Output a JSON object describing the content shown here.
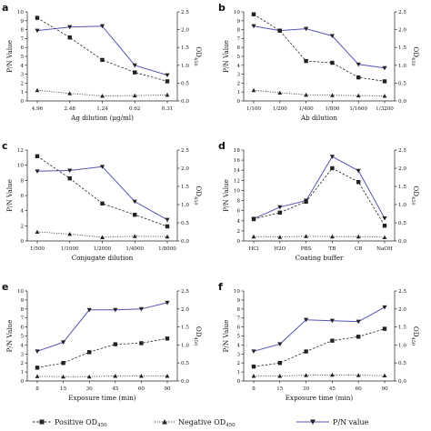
{
  "colors": {
    "positive": "#222222",
    "negative": "#222222",
    "pn": "#5555b5"
  },
  "legend": {
    "positive": "Positive OD",
    "positive_sub": "450",
    "negative": "Negative OD",
    "negative_sub": "450",
    "pn": "P/N value"
  },
  "chart_data": [
    {
      "type": "line",
      "panel": "a",
      "categories": [
        "4.96",
        "2.48",
        "1.24",
        "0.62",
        "0.31"
      ],
      "xlabel": "Ag dilution (μg/ml)",
      "ylabel_left": "P/N Value",
      "ylim_left": [
        0,
        10
      ],
      "yticks_left": [
        "0",
        "1",
        "2",
        "3",
        "4",
        "5",
        "6",
        "7",
        "8",
        "9",
        "10"
      ],
      "ylabel_right": "OD",
      "ylabel_right_sub": "450",
      "ylim_right": [
        0,
        2.5
      ],
      "yticks_right": [
        "0.0",
        "0.5",
        "1.0",
        "1.5",
        "2.0",
        "2.5"
      ],
      "series": [
        {
          "name": "P/N value",
          "axis": "left",
          "values": [
            7.9,
            8.3,
            8.4,
            4.0,
            2.9
          ]
        },
        {
          "name": "Positive OD450",
          "axis": "right",
          "values": [
            2.33,
            1.78,
            1.15,
            0.8,
            0.55
          ]
        },
        {
          "name": "Negative OD450",
          "axis": "right",
          "values": [
            0.3,
            0.21,
            0.14,
            0.15,
            0.17
          ]
        }
      ]
    },
    {
      "type": "line",
      "panel": "b",
      "categories": [
        "1/100",
        "1/200",
        "1/400",
        "1/800",
        "1/1600",
        "1/3200"
      ],
      "xlabel": "Ab dilution",
      "ylabel_left": "P/N Value",
      "ylim_left": [
        0,
        10
      ],
      "yticks_left": [
        "0",
        "1",
        "2",
        "3",
        "4",
        "5",
        "6",
        "7",
        "8",
        "9",
        "10"
      ],
      "ylabel_right": "OD",
      "ylabel_right_sub": "450",
      "ylim_right": [
        0,
        2.5
      ],
      "yticks_right": [
        "0.0",
        "0.5",
        "1.0",
        "1.5",
        "2.0",
        "2.5"
      ],
      "series": [
        {
          "name": "P/N value",
          "axis": "left",
          "values": [
            8.4,
            7.9,
            8.1,
            7.3,
            4.1,
            3.7
          ]
        },
        {
          "name": "Positive OD450",
          "axis": "right",
          "values": [
            2.43,
            1.97,
            1.12,
            1.07,
            0.66,
            0.55
          ]
        },
        {
          "name": "Negative OD450",
          "axis": "right",
          "values": [
            0.3,
            0.23,
            0.17,
            0.16,
            0.15,
            0.14
          ]
        }
      ]
    },
    {
      "type": "line",
      "panel": "c",
      "categories": [
        "1/500",
        "1/1000",
        "1/2000",
        "1/4000",
        "1/8000"
      ],
      "xlabel": "Conjugate dilution",
      "ylabel_left": "P/N Value",
      "ylim_left": [
        0,
        12
      ],
      "yticks_left": [
        "0",
        "2",
        "4",
        "6",
        "8",
        "10",
        "12"
      ],
      "ylabel_right": "OD",
      "ylabel_right_sub": "450",
      "ylim_right": [
        0,
        2.5
      ],
      "yticks_right": [
        "0.0",
        "0.5",
        "1.0",
        "1.5",
        "2.0",
        "2.5"
      ],
      "series": [
        {
          "name": "P/N value",
          "axis": "left",
          "values": [
            9.2,
            9.3,
            9.8,
            5.2,
            2.8
          ]
        },
        {
          "name": "Positive OD450",
          "axis": "right",
          "values": [
            2.33,
            1.72,
            1.03,
            0.72,
            0.4
          ]
        },
        {
          "name": "Negative OD450",
          "axis": "right",
          "values": [
            0.25,
            0.19,
            0.1,
            0.13,
            0.12
          ]
        }
      ]
    },
    {
      "type": "line",
      "panel": "d",
      "categories": [
        "HCl",
        "H2O",
        "PBS",
        "TB",
        "CB",
        "NaOH"
      ],
      "xlabel": "Coating buffer",
      "ylabel_left": "P/N Value",
      "ylim_left": [
        0,
        18
      ],
      "yticks_left": [
        "0",
        "2",
        "4",
        "6",
        "8",
        "10",
        "12",
        "14",
        "16",
        "18"
      ],
      "ylabel_right": "OD",
      "ylabel_right_sub": "450",
      "ylim_right": [
        0,
        2.5
      ],
      "yticks_right": [
        "0.0",
        "0.5",
        "1.0",
        "1.5",
        "2.0",
        "2.5"
      ],
      "series": [
        {
          "name": "P/N value",
          "axis": "left",
          "values": [
            4.4,
            6.7,
            8.0,
            16.7,
            13.9,
            4.5
          ]
        },
        {
          "name": "Positive OD450",
          "axis": "right",
          "values": [
            0.6,
            0.78,
            1.08,
            2.0,
            1.62,
            0.42
          ]
        },
        {
          "name": "Negative OD450",
          "axis": "right",
          "values": [
            0.12,
            0.11,
            0.13,
            0.12,
            0.12,
            0.1
          ]
        }
      ]
    },
    {
      "type": "line",
      "panel": "e",
      "categories": [
        "8",
        "15",
        "30",
        "45",
        "60",
        "90"
      ],
      "xlabel": "Exposure time (min)",
      "ylabel_left": "P/N Value",
      "ylim_left": [
        0,
        10
      ],
      "yticks_left": [
        "0",
        "1",
        "2",
        "3",
        "4",
        "5",
        "6",
        "7",
        "8",
        "9",
        "10"
      ],
      "ylabel_right": "OD",
      "ylabel_right_sub": "450",
      "ylim_right": [
        0,
        2.5
      ],
      "yticks_right": [
        "0.0",
        "0.5",
        "1.0",
        "1.5",
        "2.0",
        "2.5"
      ],
      "series": [
        {
          "name": "P/N value",
          "axis": "left",
          "values": [
            3.3,
            4.3,
            7.9,
            7.9,
            8.0,
            8.7
          ]
        },
        {
          "name": "Positive OD450",
          "axis": "right",
          "values": [
            0.37,
            0.5,
            0.8,
            1.02,
            1.05,
            1.18
          ]
        },
        {
          "name": "Negative OD450",
          "axis": "right",
          "values": [
            0.13,
            0.12,
            0.12,
            0.14,
            0.14,
            0.14
          ]
        }
      ]
    },
    {
      "type": "line",
      "panel": "f",
      "categories": [
        "8",
        "15",
        "30",
        "45",
        "60",
        "90"
      ],
      "xlabel": "Exposure time (min)",
      "ylabel_left": "P/N Value",
      "ylim_left": [
        0,
        10
      ],
      "yticks_left": [
        "0",
        "1",
        "2",
        "3",
        "4",
        "5",
        "6",
        "7",
        "8",
        "9",
        "10"
      ],
      "ylabel_right": "OD",
      "ylabel_right_sub": "450",
      "ylim_right": [
        0,
        2.5
      ],
      "yticks_right": [
        "0.0",
        "0.5",
        "1.0",
        "1.5",
        "2.0",
        "2.5"
      ],
      "series": [
        {
          "name": "P/N value",
          "axis": "left",
          "values": [
            3.3,
            4.1,
            6.8,
            6.7,
            6.6,
            8.2
          ]
        },
        {
          "name": "Positive OD450",
          "axis": "right",
          "values": [
            0.4,
            0.5,
            0.82,
            1.12,
            1.23,
            1.45
          ]
        },
        {
          "name": "Negative OD450",
          "axis": "right",
          "values": [
            0.14,
            0.14,
            0.16,
            0.17,
            0.16,
            0.15
          ]
        }
      ]
    }
  ]
}
